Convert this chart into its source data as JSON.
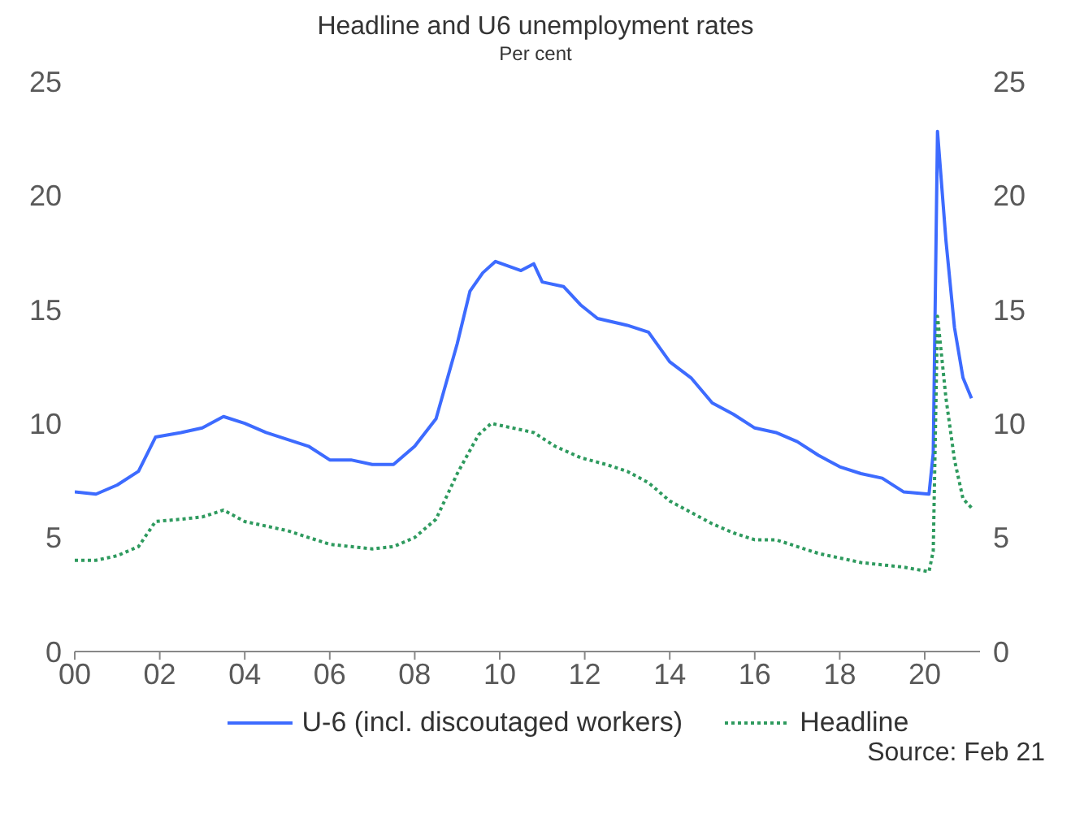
{
  "chart_data": {
    "type": "line",
    "title": "Headline and U6 unemployment rates",
    "subtitle": "Per cent",
    "xlim": [
      2000,
      2021.3
    ],
    "xticks": [
      {
        "value": 2000,
        "label": "00"
      },
      {
        "value": 2002,
        "label": "02"
      },
      {
        "value": 2004,
        "label": "04"
      },
      {
        "value": 2006,
        "label": "06"
      },
      {
        "value": 2008,
        "label": "08"
      },
      {
        "value": 2010,
        "label": "10"
      },
      {
        "value": 2012,
        "label": "12"
      },
      {
        "value": 2014,
        "label": "14"
      },
      {
        "value": 2016,
        "label": "16"
      },
      {
        "value": 2018,
        "label": "18"
      },
      {
        "value": 2020,
        "label": "20"
      }
    ],
    "ylim": [
      0,
      25
    ],
    "yticks": [
      0,
      5,
      10,
      15,
      20,
      25
    ],
    "y2lim": [
      0,
      25
    ],
    "y2ticks": [
      0,
      5,
      10,
      15,
      20,
      25
    ],
    "grid": false,
    "legend": "bottom",
    "marker": "none",
    "series": [
      {
        "name": "U-6 (incl. discoutaged workers)",
        "color": "#3d6bff",
        "line_style": "solid",
        "x": [
          2000,
          2000.5,
          2001,
          2001.5,
          2001.9,
          2002.5,
          2003,
          2003.5,
          2004,
          2004.5,
          2005,
          2005.5,
          2006,
          2006.5,
          2007,
          2007.5,
          2008,
          2008.5,
          2009,
          2009.3,
          2009.6,
          2009.9,
          2010.5,
          2010.8,
          2011,
          2011.5,
          2011.9,
          2012.3,
          2013,
          2013.5,
          2014,
          2014.5,
          2015,
          2015.5,
          2016,
          2016.5,
          2017,
          2017.5,
          2018,
          2018.5,
          2019,
          2019.5,
          2020.1,
          2020.2,
          2020.3,
          2020.5,
          2020.7,
          2020.9,
          2021.1
        ],
        "values": [
          7.0,
          6.9,
          7.3,
          7.9,
          9.4,
          9.6,
          9.8,
          10.3,
          10.0,
          9.6,
          9.3,
          9.0,
          8.4,
          8.4,
          8.2,
          8.2,
          9.0,
          10.2,
          13.5,
          15.8,
          16.6,
          17.1,
          16.7,
          17.0,
          16.2,
          16.0,
          15.2,
          14.6,
          14.3,
          14.0,
          12.7,
          12.0,
          10.9,
          10.4,
          9.8,
          9.6,
          9.2,
          8.6,
          8.1,
          7.8,
          7.6,
          7.0,
          6.9,
          8.7,
          22.8,
          18.0,
          14.2,
          12.0,
          11.1
        ]
      },
      {
        "name": "Headline",
        "color": "#2e9a5e",
        "line_style": "dotted",
        "x": [
          2000,
          2000.5,
          2001,
          2001.5,
          2001.9,
          2002.5,
          2003,
          2003.5,
          2004,
          2004.5,
          2005,
          2005.5,
          2006,
          2006.5,
          2007,
          2007.5,
          2008,
          2008.5,
          2009,
          2009.5,
          2009.8,
          2010.3,
          2010.8,
          2011.3,
          2011.9,
          2012.5,
          2013,
          2013.5,
          2014,
          2014.5,
          2015,
          2015.5,
          2016,
          2016.5,
          2017,
          2017.5,
          2018,
          2018.5,
          2019,
          2019.5,
          2020.1,
          2020.2,
          2020.3,
          2020.5,
          2020.7,
          2020.9,
          2021.1
        ],
        "values": [
          4.0,
          4.0,
          4.2,
          4.6,
          5.7,
          5.8,
          5.9,
          6.2,
          5.7,
          5.5,
          5.3,
          5.0,
          4.7,
          4.6,
          4.5,
          4.6,
          5.0,
          5.8,
          7.8,
          9.5,
          10.0,
          9.8,
          9.6,
          9.0,
          8.5,
          8.2,
          7.9,
          7.4,
          6.6,
          6.1,
          5.6,
          5.2,
          4.9,
          4.9,
          4.6,
          4.3,
          4.1,
          3.9,
          3.8,
          3.7,
          3.5,
          4.4,
          14.7,
          11.1,
          8.4,
          6.7,
          6.3
        ]
      }
    ],
    "annotations": [
      "Source: Feb 21"
    ]
  }
}
